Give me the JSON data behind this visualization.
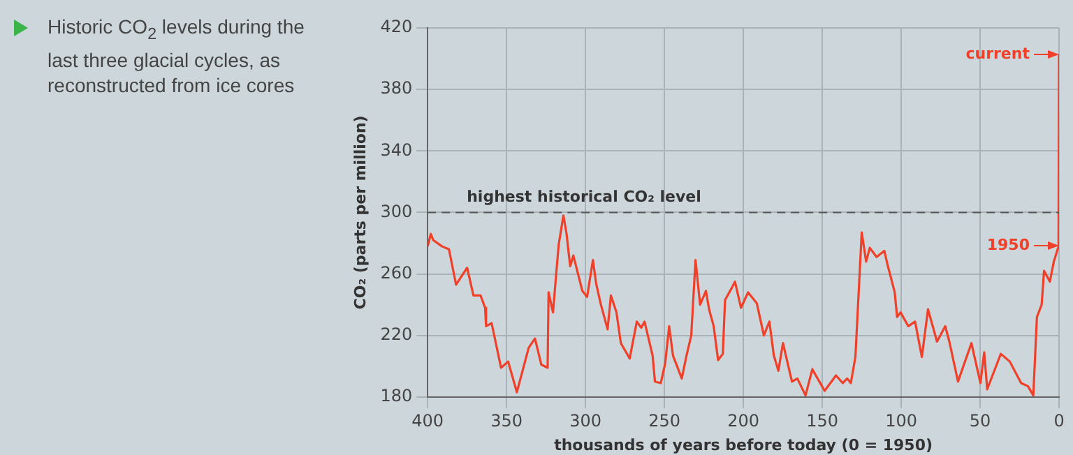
{
  "chart_data": {
    "type": "line",
    "title": "Historic CO$_{2}$ levels during the last three glacial cycles, as reconstructed from ice cores",
    "xlabel": "thousands of years before today (0 = 1950)",
    "ylabel": "CO₂ (parts per million)",
    "x": [
      400,
      398,
      396.5,
      391,
      386.5,
      382,
      375,
      371,
      366.5,
      363.6,
      363,
      359.5,
      353.5,
      349,
      343.5,
      336,
      332,
      328,
      324,
      323.4,
      320.6,
      317,
      314,
      312,
      309.7,
      307.7,
      302,
      299,
      295.3,
      293.3,
      290.5,
      286,
      283.9,
      280.4,
      277.6,
      272,
      267.5,
      264.7,
      262.6,
      257.5,
      256,
      252.3,
      249.5,
      247,
      244.6,
      239,
      236,
      233,
      230.3,
      227.4,
      223.7,
      221.7,
      218.8,
      216,
      213,
      211.6,
      207.3,
      205.3,
      201.5,
      197,
      191.5,
      187,
      183.5,
      180.7,
      177.8,
      174.9,
      169.2,
      165.8,
      160.6,
      156.3,
      148.5,
      141.3,
      137,
      134.2,
      131.9,
      129,
      125,
      122.2,
      119.9,
      115.6,
      110.7,
      108.4,
      104.1,
      102.6,
      100.4,
      95.5,
      91.2,
      86.9,
      83,
      77.3,
      72.1,
      69.5,
      64,
      55.5,
      49.8,
      47.4,
      45.5,
      36.9,
      31.2,
      24,
      19.7,
      16.3,
      14,
      11,
      9.5,
      5.8,
      3.3,
      0.3,
      0
    ],
    "values": [
      278,
      286,
      282,
      278,
      276,
      253,
      264,
      246,
      246,
      238,
      226,
      228,
      199,
      203,
      183,
      212,
      218,
      201,
      199,
      248,
      235,
      279,
      298,
      286,
      265,
      272,
      249,
      245,
      269,
      254,
      241,
      224,
      246,
      235,
      215,
      205,
      229,
      225,
      229,
      207,
      190,
      189,
      202,
      226,
      207,
      192,
      207,
      220,
      269,
      240,
      249,
      237,
      226,
      204,
      208,
      243,
      251,
      255,
      238,
      248,
      241,
      220,
      229,
      207,
      197,
      215,
      190,
      192,
      181,
      198,
      184,
      194,
      189,
      192,
      189,
      206,
      287,
      268,
      277,
      271,
      275,
      265,
      248,
      232,
      235,
      226,
      229,
      206,
      237,
      216,
      226,
      216,
      190,
      215,
      189,
      209,
      185,
      208,
      203,
      189,
      187,
      181,
      232,
      240,
      262,
      255,
      268,
      278,
      403
    ],
    "color": "#f0402a",
    "xlim": [
      400,
      0
    ],
    "xticks": [
      400,
      350,
      300,
      250,
      200,
      150,
      100,
      50,
      0
    ],
    "ylim": [
      180,
      420
    ],
    "yticks": [
      180,
      220,
      260,
      300,
      340,
      380,
      420
    ],
    "grid": true,
    "legend": false,
    "marker": "none",
    "line_style": "solid",
    "ref_lines": [
      {
        "axis": "y",
        "value": 300,
        "label": "highest historical CO₂ level",
        "color": "#555555",
        "line_style": "dashed"
      }
    ],
    "annotations": [
      {
        "text": "current",
        "x": 0,
        "y": 403
      },
      {
        "text": "1950",
        "x": 0,
        "y": 278
      }
    ]
  }
}
